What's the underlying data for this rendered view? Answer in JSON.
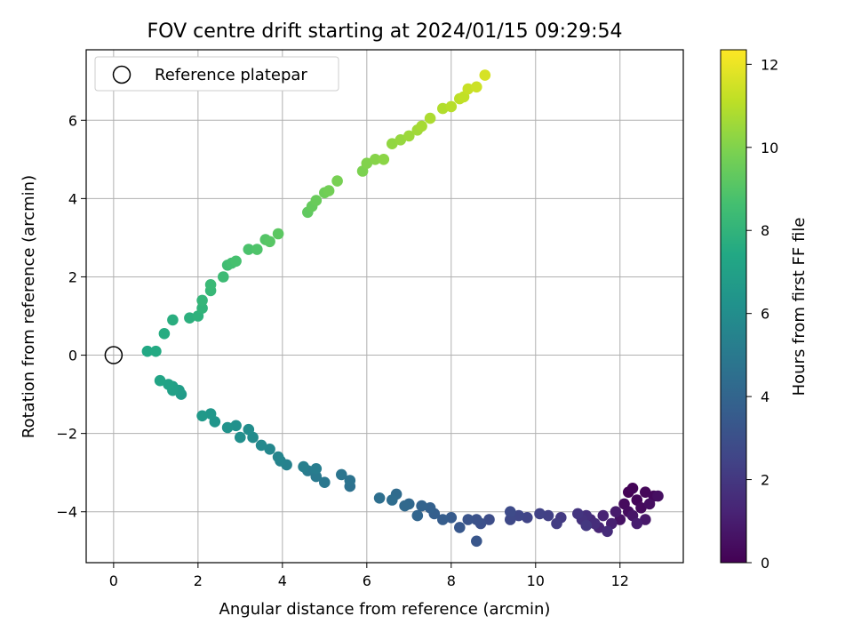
{
  "chart_data": {
    "type": "scatter",
    "title": "FOV centre drift starting at 2024/01/15 09:29:54",
    "xlabel": "Angular distance from reference (arcmin)",
    "ylabel": "Rotation from reference (arcmin)",
    "colorbar_label": "Hours from first FF file",
    "xlim": [
      -0.65,
      13.5
    ],
    "ylim": [
      -5.3,
      7.8
    ],
    "xticks": [
      0,
      2,
      4,
      6,
      8,
      10,
      12
    ],
    "xtick_labels": [
      "0",
      "2",
      "4",
      "6",
      "8",
      "10",
      "12"
    ],
    "yticks": [
      -4,
      -2,
      0,
      2,
      4,
      6
    ],
    "ytick_labels": [
      "−4",
      "−2",
      "0",
      "2",
      "4",
      "6"
    ],
    "colorbar_range": [
      0,
      12.35
    ],
    "colorbar_ticks": [
      0,
      2,
      4,
      6,
      8,
      10,
      12
    ],
    "colorbar_tick_labels": [
      "0",
      "2",
      "4",
      "6",
      "8",
      "10",
      "12"
    ],
    "colormap": "viridis",
    "grid": true,
    "legend": {
      "position": "top-left",
      "entries": [
        "Reference platepar"
      ]
    },
    "reference_point": {
      "label": "Reference platepar",
      "x": 0,
      "y": 0
    },
    "points": [
      [
        12.2,
        -3.5,
        0.05
      ],
      [
        12.3,
        -3.4,
        0.1
      ],
      [
        12.4,
        -3.7,
        0.15
      ],
      [
        12.6,
        -3.5,
        0.2
      ],
      [
        12.8,
        -3.6,
        0.25
      ],
      [
        12.5,
        -3.9,
        0.3
      ],
      [
        12.1,
        -3.8,
        0.35
      ],
      [
        12.2,
        -4.0,
        0.4
      ],
      [
        12.7,
        -3.8,
        0.45
      ],
      [
        12.9,
        -3.6,
        0.5
      ],
      [
        12.0,
        -4.2,
        0.6
      ],
      [
        12.3,
        -4.1,
        0.7
      ],
      [
        12.6,
        -4.2,
        0.8
      ],
      [
        11.9,
        -4.0,
        0.9
      ],
      [
        12.4,
        -4.3,
        1.0
      ],
      [
        11.8,
        -4.3,
        1.1
      ],
      [
        11.6,
        -4.1,
        1.2
      ],
      [
        11.5,
        -4.4,
        1.3
      ],
      [
        11.3,
        -4.2,
        1.4
      ],
      [
        11.7,
        -4.5,
        1.5
      ],
      [
        11.4,
        -4.3,
        1.6
      ],
      [
        11.2,
        -4.1,
        1.7
      ],
      [
        11.1,
        -4.2,
        1.8
      ],
      [
        11.0,
        -4.05,
        1.9
      ],
      [
        11.2,
        -4.35,
        2.0
      ],
      [
        10.6,
        -4.15,
        2.1
      ],
      [
        10.5,
        -4.3,
        2.2
      ],
      [
        10.3,
        -4.1,
        2.3
      ],
      [
        10.1,
        -4.05,
        2.4
      ],
      [
        9.8,
        -4.15,
        2.5
      ],
      [
        9.6,
        -4.1,
        2.6
      ],
      [
        9.4,
        -4.2,
        2.7
      ],
      [
        9.4,
        -4.0,
        2.8
      ],
      [
        8.9,
        -4.2,
        2.9
      ],
      [
        8.7,
        -4.3,
        3.0
      ],
      [
        8.6,
        -4.2,
        3.1
      ],
      [
        8.4,
        -4.2,
        3.2
      ],
      [
        8.6,
        -4.75,
        3.3
      ],
      [
        8.2,
        -4.4,
        3.4
      ],
      [
        8.0,
        -4.15,
        3.5
      ],
      [
        7.8,
        -4.2,
        3.6
      ],
      [
        7.6,
        -4.05,
        3.7
      ],
      [
        7.5,
        -3.9,
        3.8
      ],
      [
        7.3,
        -3.85,
        3.9
      ],
      [
        7.2,
        -4.1,
        4.0
      ],
      [
        7.0,
        -3.8,
        4.1
      ],
      [
        6.9,
        -3.85,
        4.2
      ],
      [
        6.7,
        -3.55,
        4.3
      ],
      [
        6.6,
        -3.7,
        4.4
      ],
      [
        6.3,
        -3.65,
        4.5
      ],
      [
        5.6,
        -3.35,
        4.6
      ],
      [
        5.6,
        -3.2,
        4.7
      ],
      [
        5.4,
        -3.05,
        4.8
      ],
      [
        5.0,
        -3.25,
        4.9
      ],
      [
        4.8,
        -3.1,
        5.0
      ],
      [
        4.6,
        -2.95,
        5.1
      ],
      [
        4.8,
        -2.9,
        5.2
      ],
      [
        4.5,
        -2.85,
        5.3
      ],
      [
        4.1,
        -2.8,
        5.4
      ],
      [
        3.95,
        -2.7,
        5.5
      ],
      [
        3.9,
        -2.6,
        5.6
      ],
      [
        3.7,
        -2.4,
        5.7
      ],
      [
        3.5,
        -2.3,
        5.8
      ],
      [
        3.3,
        -2.1,
        5.9
      ],
      [
        3.2,
        -1.9,
        6.0
      ],
      [
        3.0,
        -2.1,
        6.1
      ],
      [
        2.9,
        -1.8,
        6.2
      ],
      [
        2.7,
        -1.85,
        6.3
      ],
      [
        2.4,
        -1.7,
        6.4
      ],
      [
        2.3,
        -1.5,
        6.5
      ],
      [
        2.1,
        -1.55,
        6.6
      ],
      [
        1.6,
        -1.0,
        6.7
      ],
      [
        1.55,
        -0.9,
        6.8
      ],
      [
        1.4,
        -0.8,
        6.9
      ],
      [
        1.4,
        -0.9,
        7.0
      ],
      [
        1.3,
        -0.75,
        7.1
      ],
      [
        1.1,
        -0.65,
        7.2
      ],
      [
        0.8,
        0.1,
        7.4
      ],
      [
        1.0,
        0.1,
        7.5
      ],
      [
        1.2,
        0.55,
        7.6
      ],
      [
        1.4,
        0.9,
        7.7
      ],
      [
        1.8,
        0.95,
        7.8
      ],
      [
        2.0,
        1.0,
        7.9
      ],
      [
        2.1,
        1.2,
        8.0
      ],
      [
        2.1,
        1.4,
        8.1
      ],
      [
        2.3,
        1.65,
        8.2
      ],
      [
        2.3,
        1.8,
        8.3
      ],
      [
        2.6,
        2.0,
        8.4
      ],
      [
        2.7,
        2.3,
        8.5
      ],
      [
        2.8,
        2.35,
        8.6
      ],
      [
        2.9,
        2.4,
        8.7
      ],
      [
        3.2,
        2.7,
        8.8
      ],
      [
        3.4,
        2.7,
        8.9
      ],
      [
        3.6,
        2.95,
        9.0
      ],
      [
        3.7,
        2.9,
        9.1
      ],
      [
        3.9,
        3.1,
        9.2
      ],
      [
        4.6,
        3.65,
        9.3
      ],
      [
        4.7,
        3.8,
        9.4
      ],
      [
        4.8,
        3.95,
        9.5
      ],
      [
        5.0,
        4.15,
        9.6
      ],
      [
        5.1,
        4.2,
        9.7
      ],
      [
        5.3,
        4.45,
        9.8
      ],
      [
        5.9,
        4.7,
        9.9
      ],
      [
        6.0,
        4.9,
        10.0
      ],
      [
        6.2,
        5.0,
        10.1
      ],
      [
        6.4,
        5.0,
        10.2
      ],
      [
        6.6,
        5.4,
        10.3
      ],
      [
        6.8,
        5.5,
        10.4
      ],
      [
        7.0,
        5.6,
        10.5
      ],
      [
        7.2,
        5.75,
        10.6
      ],
      [
        7.3,
        5.85,
        10.7
      ],
      [
        7.5,
        6.05,
        10.8
      ],
      [
        7.8,
        6.3,
        10.9
      ],
      [
        8.0,
        6.35,
        11.0
      ],
      [
        8.2,
        6.55,
        11.1
      ],
      [
        8.3,
        6.6,
        11.2
      ],
      [
        8.4,
        6.8,
        11.3
      ],
      [
        8.6,
        6.85,
        11.4
      ],
      [
        8.8,
        7.15,
        11.6
      ]
    ]
  }
}
